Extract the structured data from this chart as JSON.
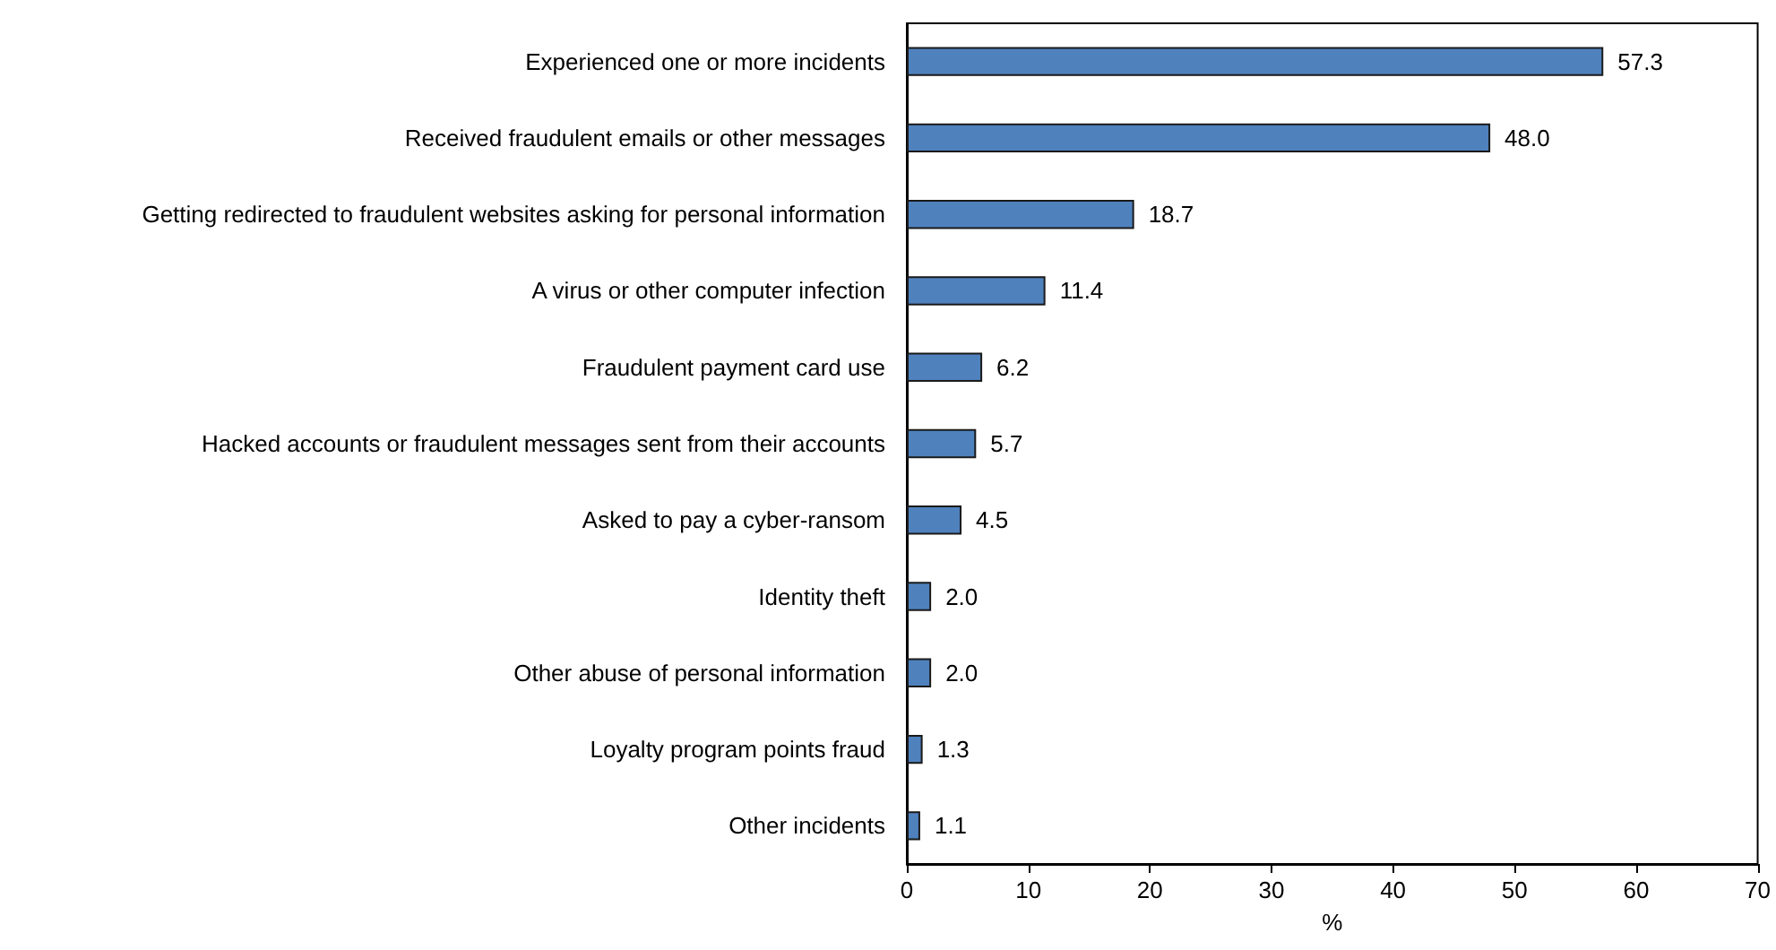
{
  "chart_data": {
    "type": "bar",
    "orientation": "horizontal",
    "xlabel": "%",
    "categories": [
      "Experienced one or more incidents",
      "Received fraudulent emails or other messages",
      "Getting redirected to fraudulent websites asking for personal information",
      "A virus or other computer infection",
      "Fraudulent payment card use",
      "Hacked accounts or fraudulent messages sent from their accounts",
      "Asked to pay a cyber-ransom",
      "Identity theft",
      "Other abuse of personal information",
      "Loyalty program points fraud",
      "Other incidents"
    ],
    "values": [
      57.3,
      48.0,
      18.7,
      11.4,
      6.2,
      5.7,
      4.5,
      2.0,
      2.0,
      1.3,
      1.1
    ],
    "value_labels": [
      "57.3",
      "48.0",
      "18.7",
      "11.4",
      "6.2",
      "5.7",
      "4.5",
      "2.0",
      "2.0",
      "1.3",
      "1.1"
    ],
    "color": "#4f81bd",
    "xlim": [
      0,
      70
    ],
    "xticks": [
      0,
      10,
      20,
      30,
      40,
      50,
      60,
      70
    ]
  }
}
